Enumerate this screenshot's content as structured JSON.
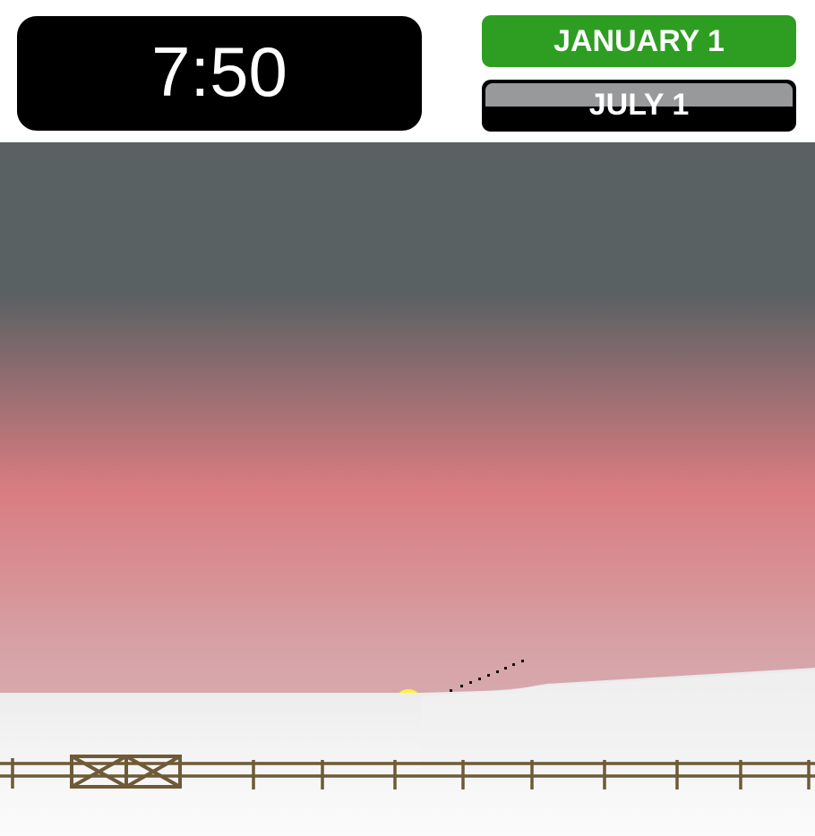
{
  "clock": {
    "time": "7:50"
  },
  "date_buttons": [
    {
      "label": "JANUARY 1",
      "state": "selected",
      "color": "#2e9e22"
    },
    {
      "label": "JULY 1",
      "state": "unselected",
      "color": "#000000"
    }
  ],
  "scene": {
    "sky_colors": [
      "#5a6163",
      "#d97c81",
      "#d8b1b4"
    ],
    "snow_color": "#f2f2f2",
    "sun_color": "#fff23c",
    "fence_color": "#6e5a37",
    "fence_gate_count": 2
  }
}
